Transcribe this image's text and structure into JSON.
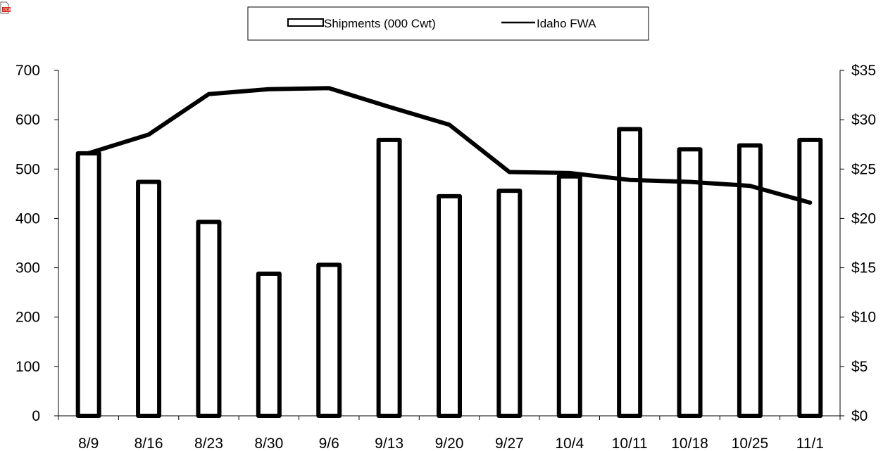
{
  "icon": "pdf-file-icon",
  "colors": {
    "bars_stroke": "#000000",
    "bars_fill": "#ffffff",
    "line": "#000000",
    "axis": "#000000",
    "icon_red": "#d9261c"
  },
  "chart_data": {
    "type": "bar",
    "title": "",
    "xlabel": "",
    "ylabel": "",
    "y2label": "",
    "categories": [
      "8/9",
      "8/16",
      "8/23",
      "8/30",
      "9/6",
      "9/13",
      "9/20",
      "9/27",
      "10/4",
      "10/11",
      "10/18",
      "10/25",
      "11/1"
    ],
    "ylim": [
      0,
      700
    ],
    "y2lim": [
      0,
      35
    ],
    "y_ticks": [
      "0",
      "100",
      "200",
      "300",
      "400",
      "500",
      "600",
      "700"
    ],
    "y2_ticks": [
      "$0",
      "$5",
      "$10",
      "$15",
      "$20",
      "$25",
      "$30",
      "$35"
    ],
    "grid": false,
    "legend_position": "top-center",
    "series": [
      {
        "name": "Shipments (000 Cwt)",
        "type": "bar",
        "axis": "left",
        "values": [
          532,
          474,
          393,
          288,
          306,
          559,
          445,
          456,
          485,
          581,
          540,
          548,
          559
        ]
      },
      {
        "name": "Idaho FWA",
        "type": "line",
        "axis": "right",
        "values": [
          26.6,
          28.5,
          32.6,
          33.1,
          33.2,
          31.3,
          29.5,
          24.7,
          24.6,
          23.9,
          23.7,
          23.3,
          21.6
        ]
      }
    ]
  }
}
